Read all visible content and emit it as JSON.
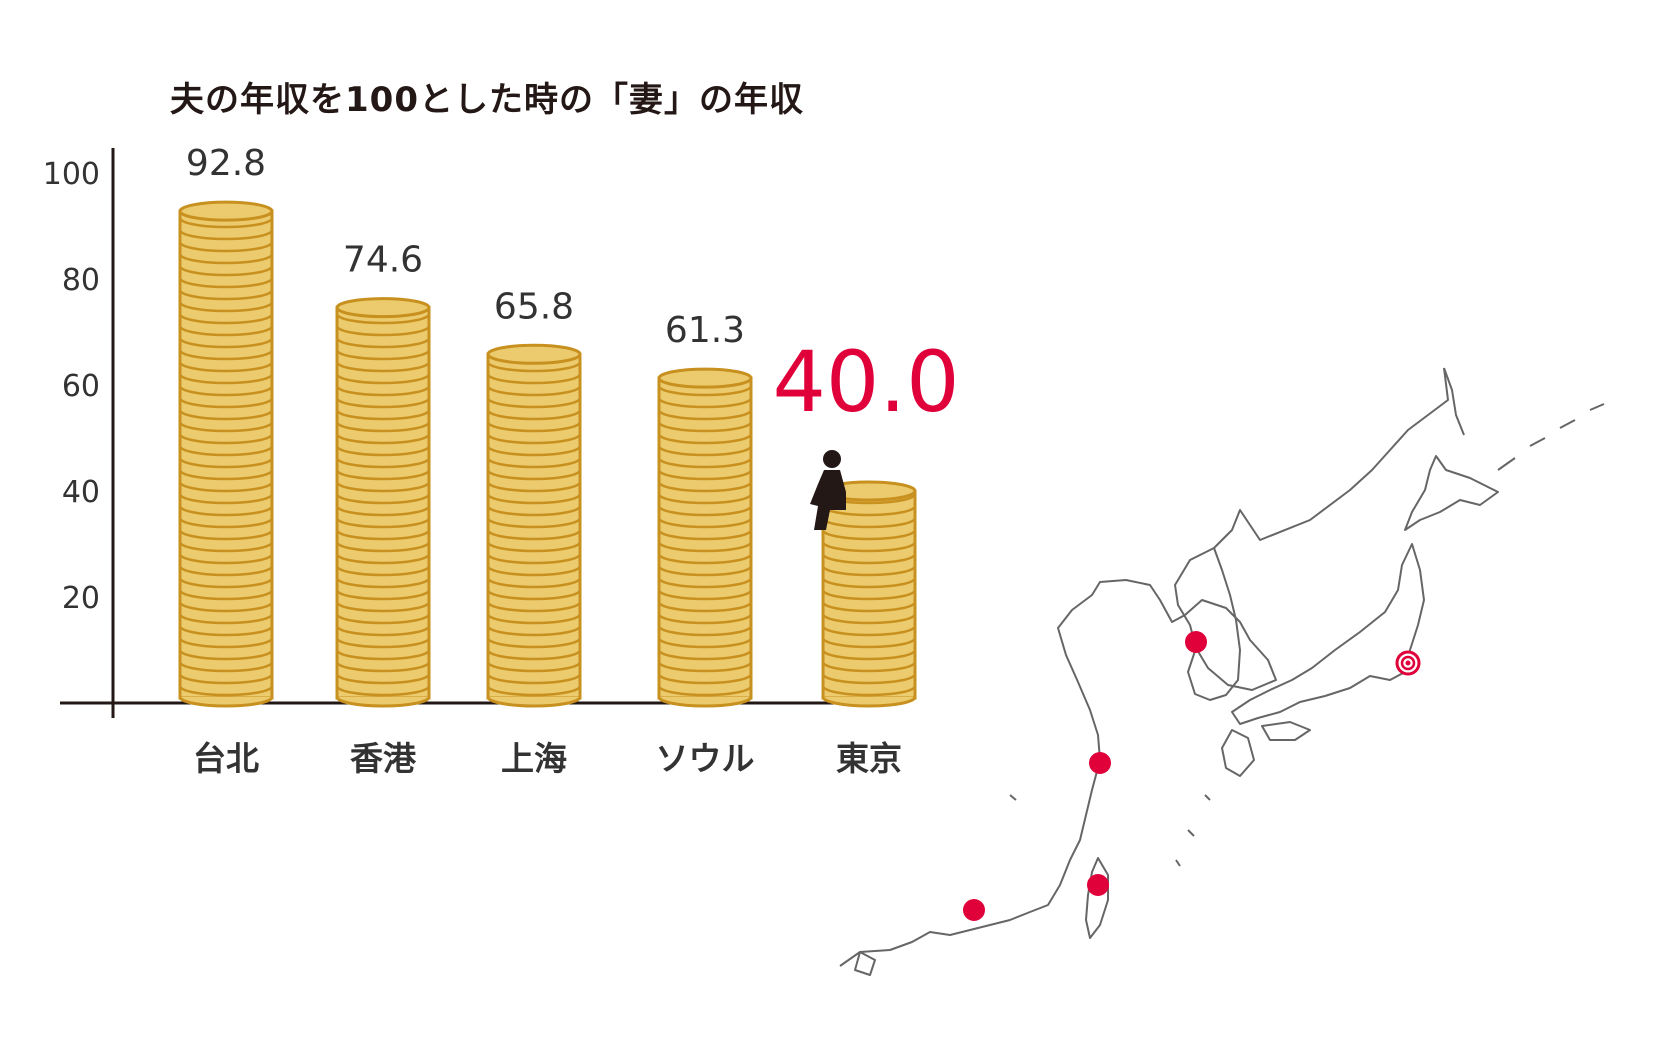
{
  "chart_data": {
    "type": "bar",
    "title": "夫の年収を100とした時の「妻」の年収",
    "categories": [
      "台北",
      "香港",
      "上海",
      "ソウル",
      "東京"
    ],
    "values": [
      92.8,
      74.6,
      65.8,
      61.3,
      40.0
    ],
    "value_labels": [
      "92.8",
      "74.6",
      "65.8",
      "61.3",
      "40.0"
    ],
    "highlight_index": 4,
    "ylim": [
      0,
      100
    ],
    "yticks": [
      20,
      40,
      60,
      80,
      100
    ],
    "ytick_labels": [
      "20",
      "40",
      "60",
      "80",
      "100"
    ],
    "xlabel": "",
    "ylabel": "",
    "grid": false,
    "bar_style": "stacked coins",
    "colors": {
      "coin_fill": "#EBCB6E",
      "coin_stroke": "#C8901E",
      "axis": "#231815",
      "label": "#333333",
      "highlight": "#E0003A",
      "map_line": "#666666",
      "city_marker": "#E0003A"
    }
  },
  "map": {
    "markers": [
      "seoul-marker",
      "shanghai-marker",
      "taipei-marker",
      "hongkong-marker",
      "tokyo-marker"
    ]
  }
}
